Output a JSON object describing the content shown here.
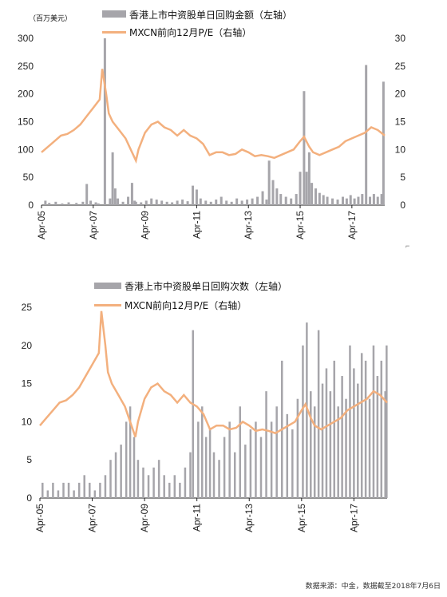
{
  "colors": {
    "bars": "#a6a5aa",
    "line": "#f3b07e",
    "axis": "#222222"
  },
  "source_note": "数据来源：中金，数据截至2018年7月6日",
  "chart_data": [
    {
      "type": "bar+line",
      "unit_label": "（百万美元）",
      "legend": [
        {
          "label": "香港上市中资股单日回购金额（左轴）",
          "kind": "bar"
        },
        {
          "label": "MXCN前向12月P/E（右轴）",
          "kind": "line"
        }
      ],
      "x_tick_labels": [
        "Apr-05",
        "Apr-07",
        "Apr-09",
        "Apr-11",
        "Apr-13",
        "Apr-15",
        "Apr-17"
      ],
      "x_range": [
        2005.25,
        2018.52
      ],
      "y_left": {
        "ylim": [
          0,
          300
        ],
        "ticks": [
          0,
          50,
          100,
          150,
          200,
          250,
          300
        ]
      },
      "y_right": {
        "ylim": [
          0,
          30
        ],
        "ticks": [
          0,
          5,
          10,
          15,
          20,
          25,
          30
        ]
      },
      "line_series": {
        "name": "MXCN前向12月P/E（右轴）",
        "x": [
          2005.25,
          2005.5,
          2005.75,
          2006.0,
          2006.25,
          2006.5,
          2006.75,
          2007.0,
          2007.25,
          2007.5,
          2007.6,
          2007.75,
          2007.85,
          2008.0,
          2008.25,
          2008.5,
          2008.75,
          2008.9,
          2009.0,
          2009.25,
          2009.5,
          2009.75,
          2010.0,
          2010.25,
          2010.5,
          2010.75,
          2011.0,
          2011.25,
          2011.5,
          2011.75,
          2012.0,
          2012.25,
          2012.5,
          2012.75,
          2013.0,
          2013.25,
          2013.5,
          2013.75,
          2014.0,
          2014.25,
          2014.5,
          2014.75,
          2015.0,
          2015.25,
          2015.4,
          2015.6,
          2015.75,
          2016.0,
          2016.25,
          2016.5,
          2016.75,
          2017.0,
          2017.25,
          2017.5,
          2017.75,
          2018.0,
          2018.25,
          2018.52
        ],
        "values": [
          9.5,
          10.5,
          11.5,
          12.5,
          12.8,
          13.5,
          14.5,
          16.0,
          17.5,
          19.0,
          24.5,
          20.0,
          16.5,
          15.0,
          13.5,
          12.0,
          9.5,
          8.0,
          10.0,
          13.0,
          14.5,
          15.0,
          14.0,
          13.5,
          12.5,
          13.5,
          12.5,
          12.0,
          11.0,
          9.0,
          9.5,
          9.5,
          9.0,
          9.2,
          10.0,
          9.5,
          8.8,
          9.0,
          8.8,
          8.5,
          9.0,
          9.5,
          10.0,
          11.5,
          12.3,
          10.5,
          9.5,
          9.0,
          9.5,
          10.0,
          10.5,
          11.5,
          12.0,
          12.5,
          13.0,
          14.0,
          13.5,
          12.5
        ]
      },
      "bar_series": {
        "name": "香港上市中资股单日回购金额（左轴）",
        "x": [
          2005.4,
          2005.55,
          2005.8,
          2006.05,
          2006.3,
          2006.6,
          2006.85,
          2007.0,
          2007.15,
          2007.35,
          2007.45,
          2007.7,
          2007.9,
          2008.0,
          2008.1,
          2008.2,
          2008.4,
          2008.6,
          2008.75,
          2008.85,
          2008.9,
          2009.1,
          2009.3,
          2009.5,
          2009.7,
          2009.9,
          2010.1,
          2010.3,
          2010.5,
          2010.7,
          2010.9,
          2011.1,
          2011.25,
          2011.4,
          2011.6,
          2011.8,
          2012.0,
          2012.2,
          2012.4,
          2012.6,
          2012.8,
          2013.0,
          2013.2,
          2013.4,
          2013.6,
          2013.8,
          2013.95,
          2014.05,
          2014.2,
          2014.35,
          2014.5,
          2014.7,
          2014.9,
          2015.1,
          2015.25,
          2015.4,
          2015.5,
          2015.6,
          2015.7,
          2015.85,
          2016.0,
          2016.15,
          2016.3,
          2016.5,
          2016.7,
          2016.9,
          2017.05,
          2017.2,
          2017.35,
          2017.5,
          2017.65,
          2017.8,
          2017.95,
          2018.1,
          2018.25,
          2018.4,
          2018.47
        ],
        "values": [
          8,
          4,
          6,
          3,
          5,
          4,
          6,
          38,
          8,
          5,
          3,
          300,
          12,
          95,
          30,
          12,
          6,
          15,
          40,
          8,
          6,
          5,
          8,
          12,
          10,
          8,
          6,
          5,
          8,
          10,
          7,
          35,
          28,
          12,
          8,
          6,
          10,
          15,
          8,
          6,
          12,
          8,
          10,
          12,
          15,
          25,
          10,
          80,
          45,
          30,
          20,
          15,
          12,
          20,
          60,
          205,
          60,
          95,
          40,
          30,
          22,
          18,
          15,
          12,
          10,
          15,
          12,
          18,
          12,
          15,
          20,
          252,
          15,
          20,
          15,
          20,
          222
        ]
      }
    },
    {
      "type": "bar+line",
      "legend": [
        {
          "label": "香港上市中资股单日回购次数（左轴）",
          "kind": "bar"
        },
        {
          "label": "MXCN前向12月P/E（右轴）",
          "kind": "line"
        }
      ],
      "x_tick_labels": [
        "Apr-05",
        "Apr-07",
        "Apr-09",
        "Apr-11",
        "Apr-13",
        "Apr-15",
        "Apr-17"
      ],
      "x_range": [
        2005.25,
        2018.52
      ],
      "y_left": {
        "ylim": [
          0,
          25
        ],
        "ticks": [
          0,
          5,
          10,
          15,
          20,
          25
        ]
      },
      "y_right": {
        "ylim": [
          0,
          25
        ]
      },
      "line_series": {
        "name": "MXCN前向12月P/E（右轴）",
        "x": [
          2005.25,
          2005.5,
          2005.75,
          2006.0,
          2006.25,
          2006.5,
          2006.75,
          2007.0,
          2007.25,
          2007.5,
          2007.6,
          2007.75,
          2007.85,
          2008.0,
          2008.25,
          2008.5,
          2008.75,
          2008.9,
          2009.0,
          2009.25,
          2009.5,
          2009.75,
          2010.0,
          2010.25,
          2010.5,
          2010.75,
          2011.0,
          2011.25,
          2011.5,
          2011.75,
          2012.0,
          2012.25,
          2012.5,
          2012.75,
          2013.0,
          2013.25,
          2013.5,
          2013.75,
          2014.0,
          2014.25,
          2014.5,
          2014.75,
          2015.0,
          2015.25,
          2015.4,
          2015.6,
          2015.75,
          2016.0,
          2016.25,
          2016.5,
          2016.75,
          2017.0,
          2017.25,
          2017.5,
          2017.75,
          2018.0,
          2018.25,
          2018.52
        ],
        "values": [
          9.5,
          10.5,
          11.5,
          12.5,
          12.8,
          13.5,
          14.5,
          16.0,
          17.5,
          19.0,
          24.5,
          20.0,
          16.5,
          15.0,
          13.5,
          12.0,
          9.5,
          8.0,
          10.0,
          13.0,
          14.5,
          15.0,
          14.0,
          13.5,
          12.5,
          13.5,
          12.5,
          12.0,
          11.0,
          9.0,
          9.5,
          9.5,
          9.0,
          9.2,
          10.0,
          9.5,
          8.8,
          9.0,
          8.8,
          8.5,
          9.0,
          9.5,
          10.0,
          11.5,
          12.3,
          10.5,
          9.5,
          9.0,
          9.5,
          10.0,
          10.5,
          11.5,
          12.0,
          12.5,
          13.0,
          14.0,
          13.5,
          12.5
        ]
      },
      "bar_series": {
        "name": "香港上市中资股单日回购次数（左轴）",
        "x": [
          2005.35,
          2005.55,
          2005.75,
          2005.95,
          2006.15,
          2006.35,
          2006.55,
          2006.75,
          2006.95,
          2007.15,
          2007.35,
          2007.55,
          2007.75,
          2007.95,
          2008.15,
          2008.35,
          2008.55,
          2008.7,
          2008.85,
          2009.0,
          2009.2,
          2009.4,
          2009.6,
          2009.8,
          2010.0,
          2010.2,
          2010.4,
          2010.6,
          2010.8,
          2011.0,
          2011.1,
          2011.3,
          2011.45,
          2011.6,
          2011.75,
          2011.9,
          2012.1,
          2012.3,
          2012.5,
          2012.7,
          2012.9,
          2013.1,
          2013.3,
          2013.5,
          2013.7,
          2013.9,
          2014.1,
          2014.3,
          2014.5,
          2014.7,
          2014.9,
          2015.1,
          2015.3,
          2015.45,
          2015.6,
          2015.75,
          2015.9,
          2016.05,
          2016.2,
          2016.35,
          2016.5,
          2016.65,
          2016.8,
          2016.95,
          2017.1,
          2017.25,
          2017.4,
          2017.55,
          2017.7,
          2017.85,
          2018.0,
          2018.15,
          2018.3,
          2018.45,
          2018.5
        ],
        "values": [
          2,
          1,
          2,
          1,
          2,
          2,
          1,
          2,
          3,
          2,
          1,
          2,
          3,
          5,
          6,
          7,
          10,
          12,
          8,
          5,
          4,
          3,
          4,
          5,
          3,
          2,
          3,
          2,
          4,
          6,
          22,
          10,
          12,
          8,
          9,
          6,
          5,
          8,
          10,
          6,
          12,
          7,
          9,
          10,
          8,
          14,
          10,
          12,
          18,
          11,
          9,
          13,
          20,
          23,
          14,
          12,
          22,
          15,
          17,
          14,
          18,
          12,
          16,
          13,
          20,
          17,
          15,
          19,
          18,
          13,
          20,
          16,
          18,
          14,
          20
        ]
      }
    }
  ]
}
